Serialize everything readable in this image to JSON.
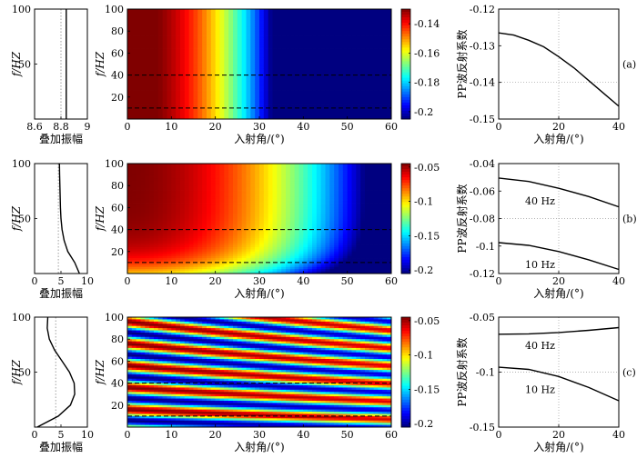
{
  "chart_data": [
    {
      "type": "line",
      "row": "a",
      "panel": "stack",
      "xlabel": "叠加振幅",
      "ylabel": "f/HZ",
      "xlim": [
        8.6,
        9
      ],
      "ylim": [
        0,
        100
      ],
      "xticks": [
        "8.6",
        "8.8",
        "9"
      ],
      "yticks": [
        "50",
        "100"
      ],
      "series": [
        {
          "x": [
            8.84,
            8.84
          ],
          "y": [
            0,
            100
          ]
        }
      ],
      "ref_x": 8.8
    },
    {
      "type": "heatmap",
      "row": "a",
      "xlabel": "入射角/(°)",
      "ylabel": "f/HZ",
      "xlim": [
        0,
        60
      ],
      "ylim": [
        0,
        100
      ],
      "xticks": [
        "0",
        "10",
        "20",
        "30",
        "40",
        "50",
        "60"
      ],
      "yticks": [
        "20",
        "40",
        "60",
        "80",
        "100"
      ],
      "colorbar": {
        "min": -0.205,
        "max": -0.13,
        "ticks": [
          "-0.14",
          "-0.16",
          "-0.18",
          "-0.2"
        ],
        "tick_values": [
          -0.14,
          -0.16,
          -0.18,
          -0.2
        ]
      },
      "dashed_lines_f": [
        10,
        40
      ],
      "model": {
        "c0": -0.1265,
        "angle_coef": -0.00073,
        "angle_pow": 2,
        "sin_amp": 0,
        "sin_freq": 0,
        "sin_phase": 0,
        "freq_coef": 0
      }
    },
    {
      "type": "line",
      "row": "a",
      "panel": "reflection",
      "xlabel": "入射角/(°)",
      "ylabel": "PP波反射系数",
      "xlim": [
        0,
        40
      ],
      "ylim": [
        -0.15,
        -0.12
      ],
      "xticks": [
        "0",
        "20",
        "40"
      ],
      "yticks": [
        "-0.12",
        "-0.13",
        "-0.14",
        "-0.15"
      ],
      "label": "(a)",
      "series": [
        {
          "x": [
            0,
            5,
            10,
            15,
            20,
            25,
            30,
            35,
            40
          ],
          "y": [
            -0.1265,
            -0.1271,
            -0.1285,
            -0.1303,
            -0.133,
            -0.136,
            -0.1395,
            -0.143,
            -0.1465
          ]
        }
      ]
    },
    {
      "type": "line",
      "row": "b",
      "panel": "stack",
      "xlabel": "叠加振幅",
      "ylabel": "f/HZ",
      "xlim": [
        0,
        10
      ],
      "ylim": [
        0,
        100
      ],
      "xticks": [
        "0",
        "5",
        "10"
      ],
      "yticks": [
        "50",
        "100"
      ],
      "series": [
        {
          "x": [
            8.5,
            7.6,
            6.3,
            5.6,
            5.2,
            5.0,
            4.9,
            4.85,
            4.8,
            4.75,
            4.7
          ],
          "y": [
            0,
            10,
            20,
            30,
            40,
            50,
            60,
            70,
            80,
            90,
            100
          ]
        }
      ],
      "ref_x": 4.5
    },
    {
      "type": "heatmap",
      "row": "b",
      "xlabel": "入射角/(°)",
      "ylabel": "f/HZ",
      "xlim": [
        0,
        60
      ],
      "ylim": [
        0,
        100
      ],
      "xticks": [
        "0",
        "10",
        "20",
        "30",
        "40",
        "50",
        "60"
      ],
      "yticks": [
        "20",
        "40",
        "60",
        "80",
        "100"
      ],
      "colorbar": {
        "min": -0.205,
        "max": -0.045,
        "ticks": [
          "-0.05",
          "-0.1",
          "-0.15",
          "-0.2"
        ],
        "tick_values": [
          -0.05,
          -0.1,
          -0.15,
          -0.2
        ]
      },
      "dashed_lines_f": [
        10,
        40
      ],
      "model": {
        "c0": -0.045,
        "angle_coef": -0.00055,
        "angle_pow": 2,
        "sin_amp": 0,
        "sin_freq": 0,
        "sin_phase": 0,
        "freq_coef": -0.052,
        "freq_scale": 15
      }
    },
    {
      "type": "line",
      "row": "b",
      "panel": "reflection",
      "xlabel": "入射角/(°)",
      "ylabel": "PP波反射系数",
      "xlim": [
        0,
        40
      ],
      "ylim": [
        -0.12,
        -0.04
      ],
      "xticks": [
        "0",
        "20",
        "40"
      ],
      "yticks": [
        "-0.04",
        "-0.06",
        "-0.08",
        "-0.1",
        "-0.12"
      ],
      "label": "(b)",
      "series": [
        {
          "name": "40 Hz",
          "x": [
            0,
            10,
            20,
            30,
            40
          ],
          "y": [
            -0.0505,
            -0.053,
            -0.058,
            -0.064,
            -0.0715
          ]
        },
        {
          "name": "10 Hz",
          "x": [
            0,
            10,
            20,
            30,
            40
          ],
          "y": [
            -0.0975,
            -0.0995,
            -0.104,
            -0.11,
            -0.117
          ]
        }
      ]
    },
    {
      "type": "line",
      "row": "c",
      "panel": "stack",
      "xlabel": "叠加振幅",
      "ylabel": "f/HZ",
      "xlim": [
        0,
        10
      ],
      "ylim": [
        0,
        100
      ],
      "xticks": [
        "0",
        "5",
        "10"
      ],
      "yticks": [
        "50",
        "100"
      ],
      "series": [
        {
          "x": [
            0.5,
            4.5,
            6.8,
            7.6,
            7.5,
            6.6,
            5.2,
            3.8,
            2.8,
            2.4,
            2.5
          ],
          "y": [
            0,
            10,
            20,
            30,
            40,
            50,
            60,
            70,
            80,
            90,
            100
          ]
        }
      ],
      "ref_x": 4.0
    },
    {
      "type": "heatmap",
      "row": "c",
      "xlabel": "入射角/(°)",
      "ylabel": "f/HZ",
      "xlim": [
        0,
        60
      ],
      "ylim": [
        0,
        100
      ],
      "xticks": [
        "0",
        "10",
        "20",
        "30",
        "40",
        "50",
        "60"
      ],
      "yticks": [
        "20",
        "40",
        "60",
        "80",
        "100"
      ],
      "colorbar": {
        "min": -0.205,
        "max": -0.045,
        "ticks": [
          "-0.05",
          "-0.1",
          "-0.15",
          "-0.2"
        ],
        "tick_values": [
          -0.05,
          -0.1,
          -0.15,
          -0.2
        ]
      },
      "dashed_lines_f": [
        10,
        40
      ],
      "model": {
        "c0": -0.125,
        "angle_coef": 0,
        "angle_pow": 2,
        "sin_amp": 0.08,
        "sin_freq": 0.05,
        "sin_phase": 0.45,
        "freq_coef": 0
      }
    },
    {
      "type": "line",
      "row": "c",
      "panel": "reflection",
      "xlabel": "入射角/(°)",
      "ylabel": "PP波反射系数",
      "xlim": [
        0,
        40
      ],
      "ylim": [
        -0.15,
        -0.05
      ],
      "xticks": [
        "0",
        "20",
        "40"
      ],
      "yticks": [
        "-0.05",
        "-0.1",
        "-0.15"
      ],
      "label": "(c)",
      "series": [
        {
          "name": "40 Hz",
          "x": [
            0,
            10,
            20,
            30,
            40
          ],
          "y": [
            -0.0655,
            -0.0652,
            -0.064,
            -0.062,
            -0.0595
          ]
        },
        {
          "name": "10 Hz",
          "x": [
            0,
            10,
            20,
            30,
            40
          ],
          "y": [
            -0.0955,
            -0.0975,
            -0.104,
            -0.114,
            -0.126
          ]
        }
      ]
    }
  ]
}
